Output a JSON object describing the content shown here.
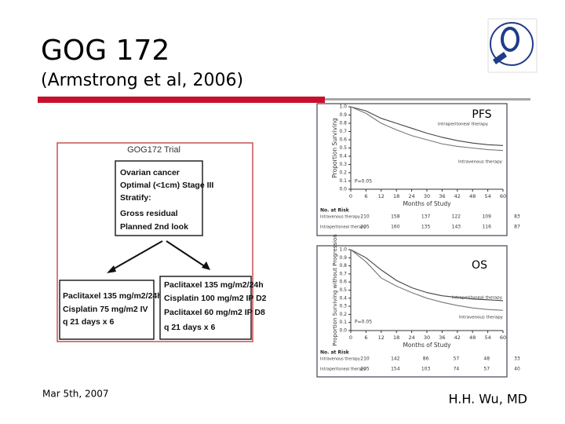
{
  "slide": {
    "title": "GOG 172",
    "subtitle": "(Armstrong et al, 2006)",
    "footer_date": "Mar 5th, 2007",
    "footer_author": "H.H. Wu, MD",
    "diagram": {
      "title": "GOG172 Trial",
      "eligibility": [
        "Ovarian cancer",
        "Optimal (<1cm) Stage III",
        "Stratify:",
        "Gross residual",
        "Planned 2nd look"
      ],
      "arms": [
        [
          "Paclitaxel 135 mg/m2/24h",
          "Cisplatin 75 mg/m2 IV",
          "q 21 days x 6"
        ],
        [
          "Paclitaxel 135 mg/m2/24h",
          "Cisplatin 100 mg/m2 IP D2",
          "Paclitaxel 60 mg/m2 IP D8",
          "q 21 days x 6"
        ]
      ]
    }
  },
  "chart_data": [
    {
      "type": "line",
      "title": "PFS",
      "x_label": "Months of Study",
      "y_label": "Proportion Surviving",
      "annotation": "P=0.05",
      "x": [
        0,
        6,
        12,
        18,
        24,
        30,
        36,
        42,
        48,
        54,
        60
      ],
      "series": [
        {
          "name": "Intraperitoneal therapy",
          "color": "#444444",
          "values": [
            1.0,
            0.95,
            0.86,
            0.8,
            0.74,
            0.68,
            0.63,
            0.59,
            0.56,
            0.54,
            0.53
          ]
        },
        {
          "name": "Intravenous therapy",
          "color": "#777777",
          "values": [
            1.0,
            0.92,
            0.8,
            0.72,
            0.65,
            0.6,
            0.55,
            0.52,
            0.5,
            0.48,
            0.47
          ]
        }
      ],
      "xlim": [
        0,
        60
      ],
      "xticks": [
        0,
        6,
        12,
        18,
        24,
        30,
        36,
        42,
        48,
        54,
        60
      ],
      "ylim": [
        0,
        1
      ],
      "yticks": [
        {
          "value": 1,
          "label": "1.0"
        },
        0.9,
        0.8,
        0.7,
        0.6,
        0.5,
        0.4,
        0.3,
        0.2,
        0.1,
        {
          "value": 0,
          "label": "0.0"
        }
      ],
      "risk_table": {
        "title": "No. at Risk",
        "rows": [
          {
            "label": "Intravenous therapy",
            "values": [
              210,
              158,
              137,
              122,
              109,
              83
            ]
          },
          {
            "label": "Intraperitoneal therapy",
            "values": [
              205,
              160,
              135,
              143,
              116,
              87
            ]
          }
        ]
      }
    },
    {
      "type": "line",
      "title": "OS",
      "x_label": "Months of Study",
      "y_label": "Proportion Surviving without Progression",
      "annotation": "P=0.05",
      "x": [
        0,
        6,
        12,
        18,
        24,
        30,
        36,
        42,
        48,
        54,
        60
      ],
      "series": [
        {
          "name": "Intraperitoneal therapy",
          "color": "#444444",
          "values": [
            1.0,
            0.9,
            0.75,
            0.62,
            0.53,
            0.47,
            0.43,
            0.41,
            0.39,
            0.38,
            0.37
          ]
        },
        {
          "name": "Intravenous therapy",
          "color": "#777777",
          "values": [
            1.0,
            0.85,
            0.65,
            0.55,
            0.47,
            0.4,
            0.35,
            0.31,
            0.28,
            0.26,
            0.25
          ]
        }
      ],
      "xlim": [
        0,
        60
      ],
      "xticks": [
        0,
        6,
        12,
        18,
        24,
        30,
        36,
        42,
        48,
        54,
        60
      ],
      "ylim": [
        0,
        1
      ],
      "yticks": [
        {
          "value": 1,
          "label": "1.0"
        },
        0.9,
        0.8,
        0.7,
        0.6,
        0.5,
        0.4,
        0.3,
        0.2,
        0.1,
        {
          "value": 0,
          "label": "0.0"
        }
      ],
      "risk_table": {
        "title": "No. at Risk",
        "rows": [
          {
            "label": "Intravenous therapy",
            "values": [
              210,
              142,
              86,
              57,
              48,
              33
            ]
          },
          {
            "label": "Intraperitoneal therapy",
            "values": [
              205,
              154,
              103,
              74,
              57,
              40
            ]
          }
        ]
      }
    }
  ]
}
